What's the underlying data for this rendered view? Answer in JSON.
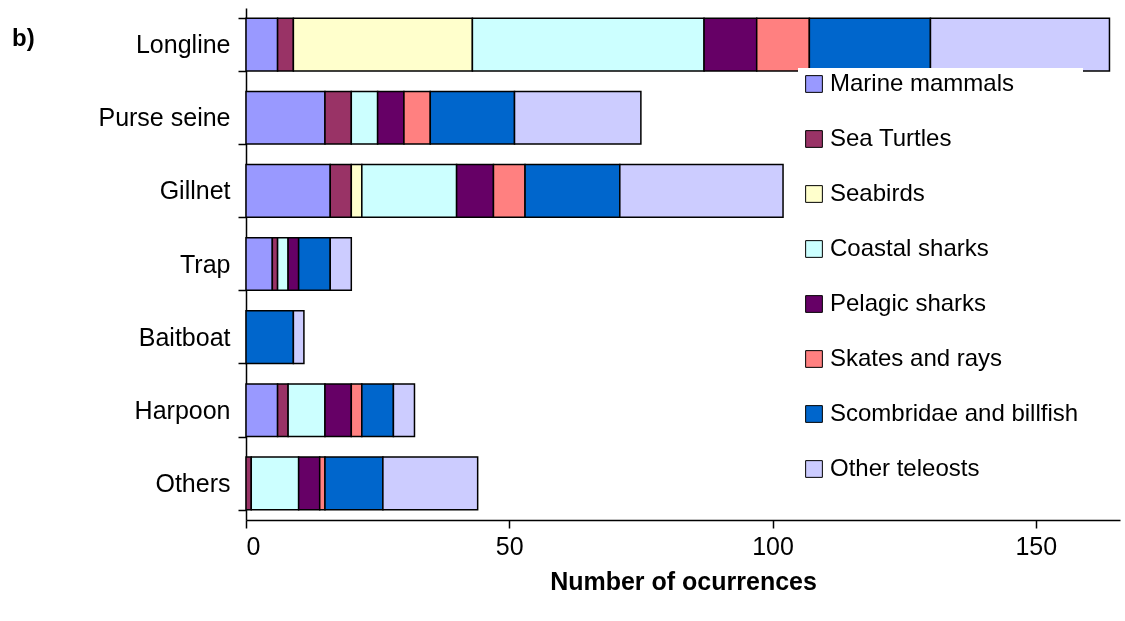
{
  "chart_data": {
    "type": "bar",
    "orientation": "horizontal",
    "stacked": true,
    "xlabel": "Number of ocurrences",
    "annotations": [
      "b)"
    ],
    "categories": [
      "Longline",
      "Purse seine",
      "Gillnet",
      "Trap",
      "Baitboat",
      "Harpoon",
      "Others"
    ],
    "series": [
      {
        "name": "Marine mammals",
        "color": "#9999ff",
        "values": [
          6,
          15,
          16,
          5,
          null,
          6,
          null
        ]
      },
      {
        "name": "Sea Turtles",
        "color": "#993366",
        "values": [
          3,
          5,
          4,
          1,
          null,
          2,
          1
        ]
      },
      {
        "name": "Seabirds",
        "color": "#ffffcc",
        "values": [
          34,
          null,
          2,
          null,
          null,
          null,
          null
        ]
      },
      {
        "name": "Coastal sharks",
        "color": "#ccffff",
        "values": [
          44,
          5,
          18,
          2,
          null,
          7,
          9
        ]
      },
      {
        "name": "Pelagic sharks",
        "color": "#660066",
        "values": [
          10,
          5,
          7,
          2,
          null,
          5,
          4
        ]
      },
      {
        "name": "Skates and rays",
        "color": "#ff8080",
        "values": [
          10,
          5,
          6,
          null,
          null,
          2,
          1
        ]
      },
      {
        "name": "Scombridae and billfish",
        "color": "#0066cc",
        "values": [
          23,
          16,
          18,
          6,
          9,
          6,
          11
        ]
      },
      {
        "name": "Other teleosts",
        "color": "#ccccff",
        "values": [
          34,
          24,
          31,
          4,
          2,
          4,
          18
        ]
      }
    ],
    "xlim": [
      0,
      166
    ],
    "xticks": [
      0,
      50,
      100,
      150
    ],
    "legend": "right"
  }
}
